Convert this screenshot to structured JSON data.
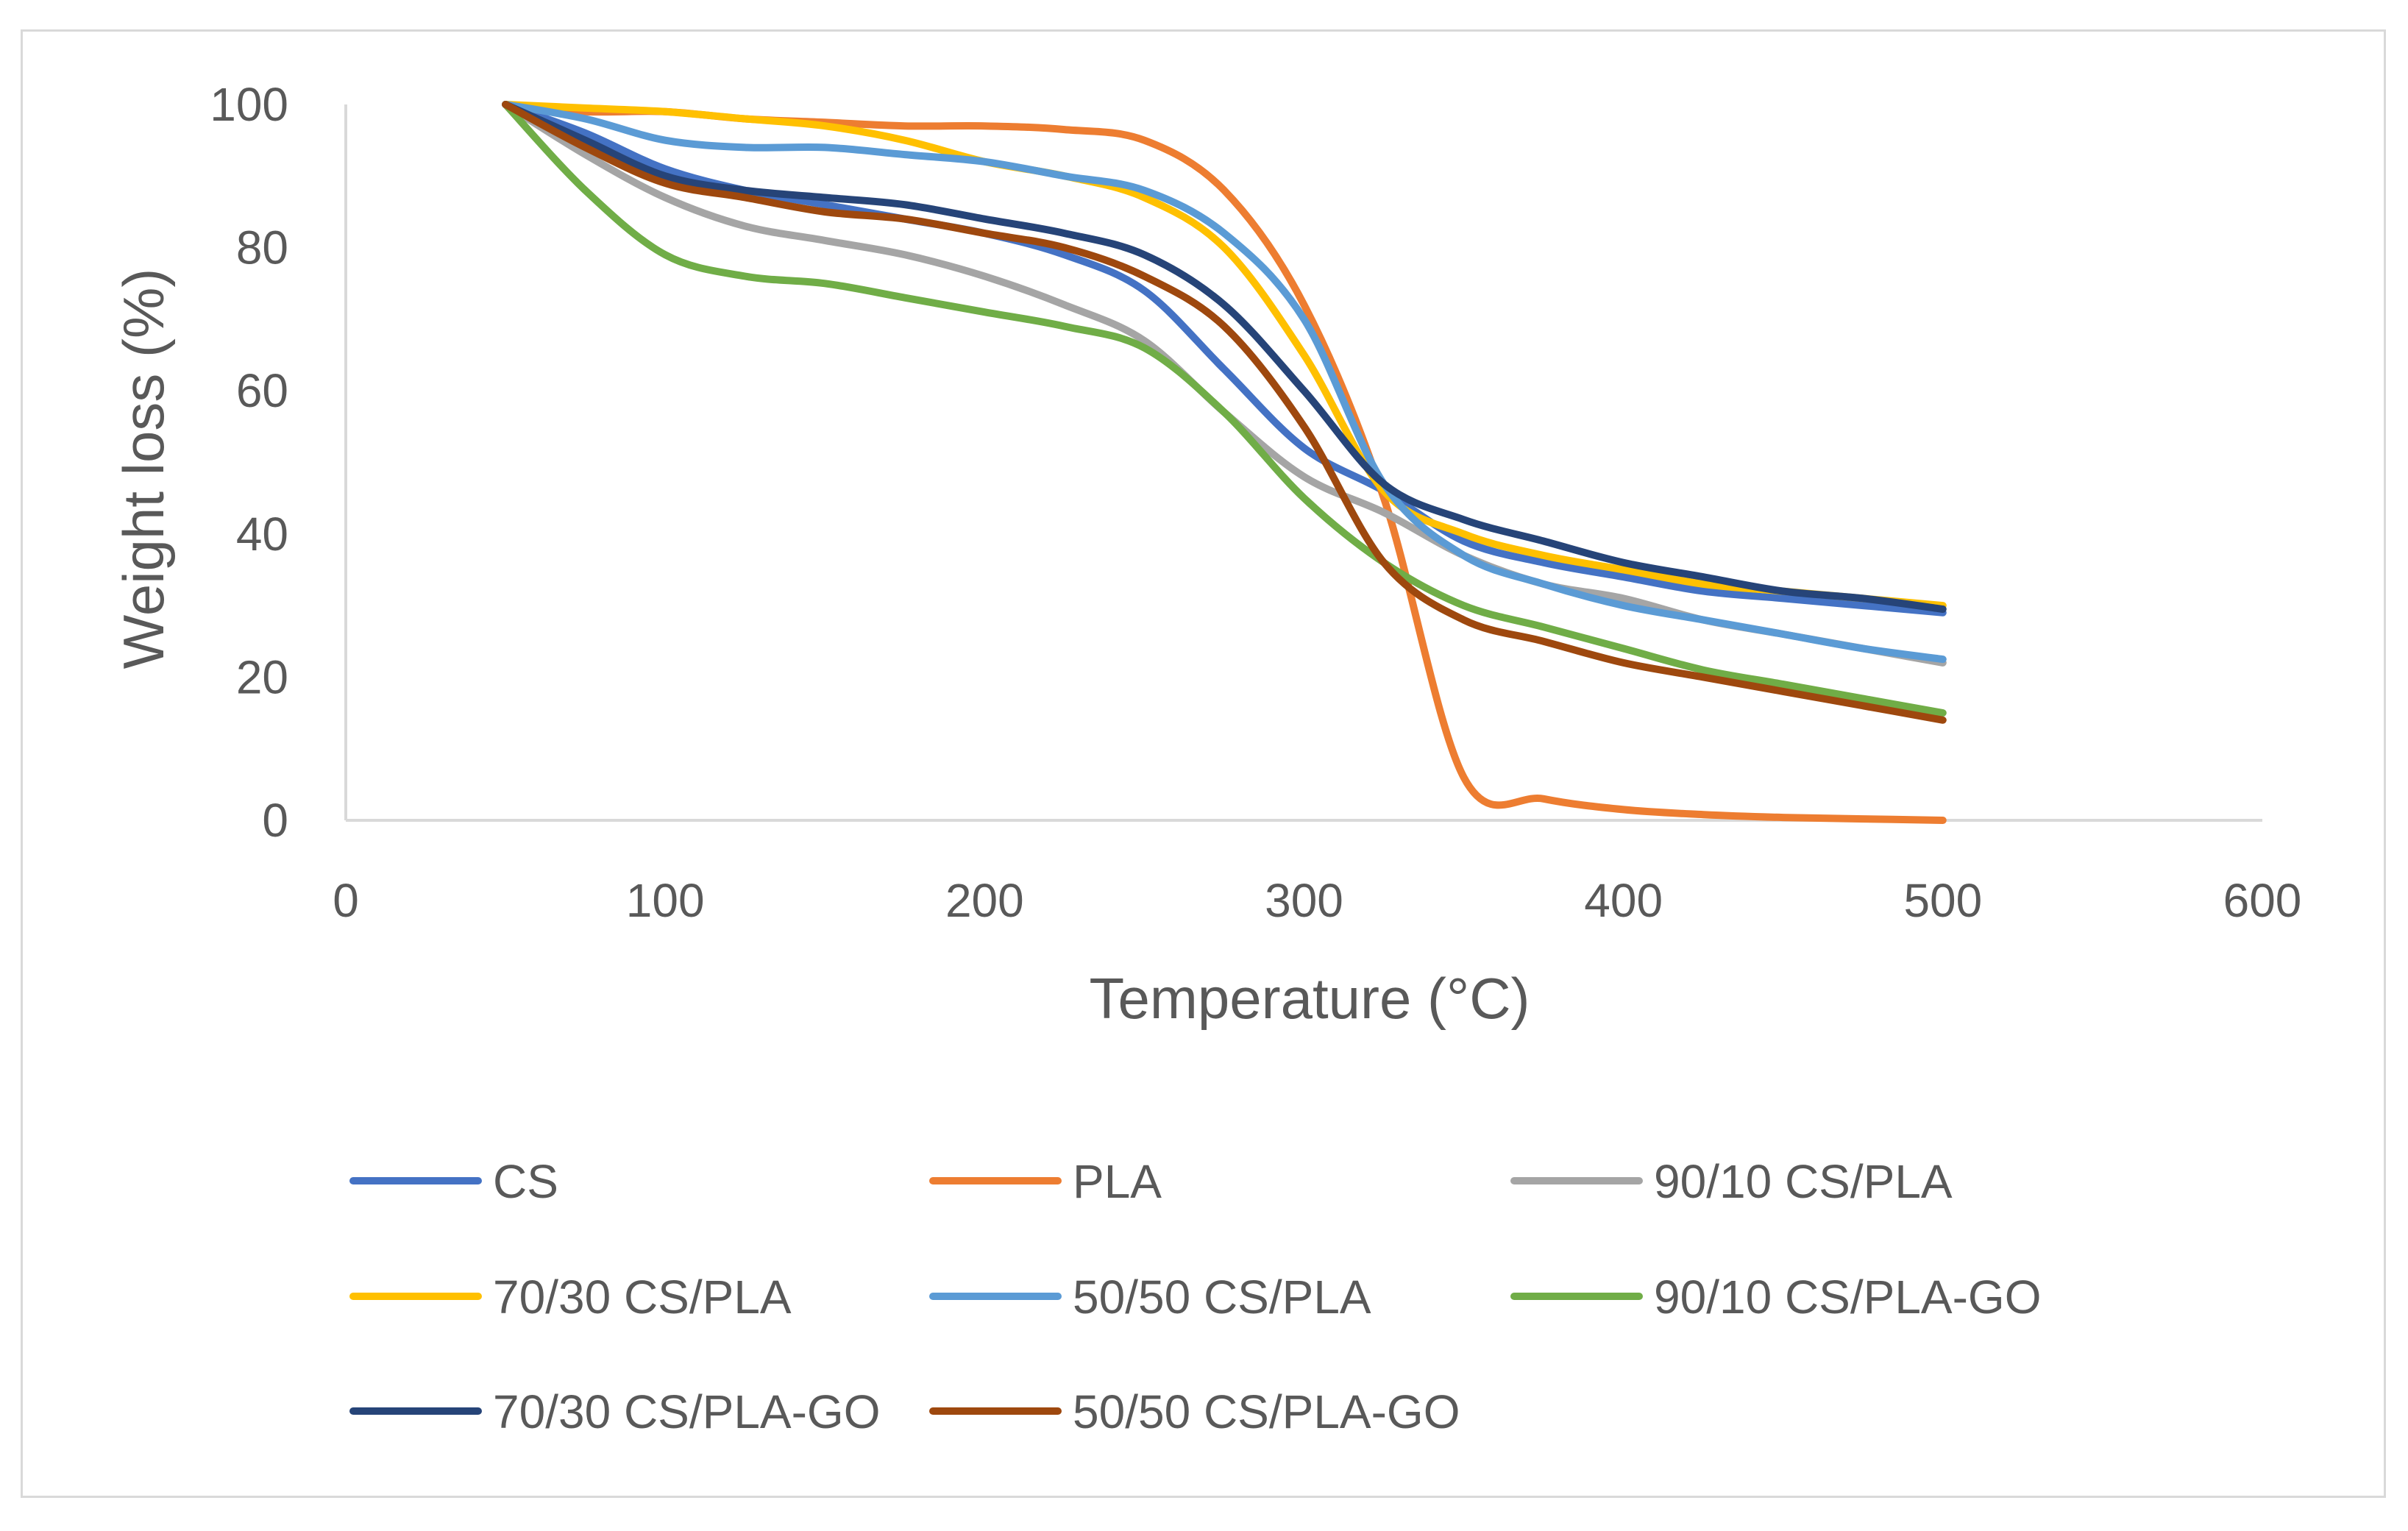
{
  "chart_data": {
    "type": "line",
    "title": "",
    "xlabel": "Temperature (°C)",
    "ylabel": "Weight loss (%)",
    "xlim": [
      0,
      600
    ],
    "ylim": [
      0,
      100
    ],
    "xticks": [
      0,
      100,
      200,
      300,
      400,
      500,
      600
    ],
    "yticks": [
      0,
      20,
      40,
      60,
      80,
      100
    ],
    "grid": false,
    "legend_position": "bottom",
    "x": [
      50,
      75,
      100,
      125,
      150,
      175,
      200,
      225,
      250,
      275,
      300,
      325,
      350,
      375,
      400,
      425,
      450,
      475,
      500
    ],
    "series": [
      {
        "name": "CS",
        "color": "#4472C4",
        "values": [
          100,
          96,
          91,
          88,
          86,
          84,
          82,
          79,
          74,
          63,
          52,
          46,
          39,
          36,
          34,
          32,
          31,
          30,
          29
        ]
      },
      {
        "name": "PLA",
        "color": "#ED7D31",
        "values": [
          100,
          99,
          99,
          98,
          97.5,
          97,
          97,
          96.5,
          95,
          88,
          72,
          45,
          6,
          3,
          1.5,
          0.8,
          0.4,
          0.2,
          0
        ]
      },
      {
        "name": "90/10 CS/PLA",
        "color": "#A5A5A5",
        "values": [
          100,
          93,
          87,
          83,
          81,
          79,
          76,
          72,
          67,
          57,
          48,
          43,
          37,
          33,
          31,
          28,
          26,
          24,
          22
        ]
      },
      {
        "name": "70/30 CS/PLA",
        "color": "#FFC000",
        "values": [
          100,
          99.5,
          99,
          98,
          97,
          95,
          92,
          90,
          87,
          80,
          65,
          46,
          40,
          37,
          35,
          33,
          32,
          31,
          30
        ]
      },
      {
        "name": "50/50 CS/PLA",
        "color": "#5B9BD5",
        "values": [
          100,
          98,
          95,
          94,
          94,
          93,
          92,
          90,
          88,
          82,
          70,
          47,
          37,
          33,
          30,
          28,
          26,
          24,
          22.5
        ]
      },
      {
        "name": "90/10 CS/PLA-GO",
        "color": "#70AD47",
        "values": [
          100,
          88,
          79,
          76,
          75,
          73,
          71,
          69,
          66,
          57,
          45,
          36,
          30,
          27,
          24,
          21,
          19,
          17,
          15
        ]
      },
      {
        "name": "70/30 CS/PLA-GO",
        "color": "#264478",
        "values": [
          100,
          95,
          90,
          88,
          87,
          86,
          84,
          82,
          79,
          72,
          60,
          47,
          42,
          39,
          36,
          34,
          32,
          31,
          29.5
        ]
      },
      {
        "name": "50/50 CS/PLA-GO",
        "color": "#9E480E",
        "values": [
          100,
          94,
          89,
          87,
          85,
          84,
          82,
          80,
          76,
          69,
          55,
          36,
          28,
          25,
          22,
          20,
          18,
          16,
          14
        ]
      }
    ]
  }
}
